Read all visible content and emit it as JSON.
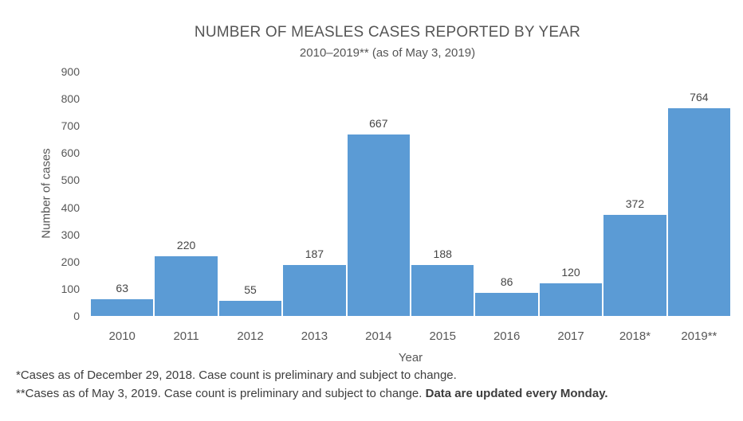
{
  "chart_data": {
    "type": "bar",
    "title": "NUMBER OF MEASLES CASES REPORTED BY YEAR",
    "subtitle": "2010–2019** (as of May 3, 2019)",
    "categories": [
      "2010",
      "2011",
      "2012",
      "2013",
      "2014",
      "2015",
      "2016",
      "2017",
      "2018*",
      "2019**"
    ],
    "values": [
      63,
      220,
      55,
      187,
      667,
      188,
      86,
      120,
      372,
      764
    ],
    "xlabel": "Year",
    "ylabel": "Number of cases",
    "ylim": [
      0,
      900
    ],
    "ytick_step": 100,
    "yticks": [
      0,
      100,
      200,
      300,
      400,
      500,
      600,
      700,
      800,
      900
    ],
    "grid": false,
    "legend": "none",
    "bar_color": "#5b9bd5",
    "value_labels_shown": true
  },
  "footnotes": {
    "note1": "*Cases as of December 29, 2018. Case count is preliminary and subject to change.",
    "note2_text": "**Cases as of May 3, 2019. Case count is preliminary and subject to change. ",
    "note2_bold": "Data are updated every Monday."
  }
}
